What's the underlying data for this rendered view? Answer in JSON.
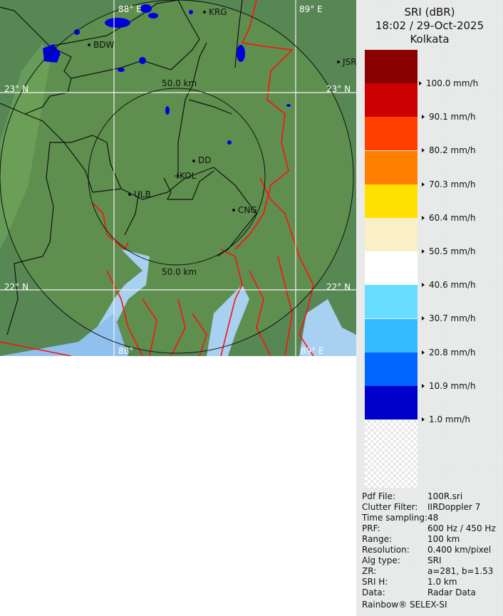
{
  "title": {
    "product": "SRI (dBR)",
    "datetime": "18:02 / 29-Oct-2025",
    "site": "Kolkata"
  },
  "map": {
    "grid_labels": {
      "lon_88": "88° E",
      "lon_89": "89° E",
      "lat_23_left": "23° N",
      "lat_23_right": "23° N",
      "lat_22_left": "22° N",
      "lat_22_right": "22° N",
      "lon_88_bottom": "88°",
      "lon_89_bottom": "89° E"
    },
    "range_rings": {
      "inner_label": "50.0 km",
      "outer_label": "50.0 km"
    },
    "cities": [
      {
        "name": "KRG"
      },
      {
        "name": "BDW"
      },
      {
        "name": "JSR"
      },
      {
        "name": "DD"
      },
      {
        "name": "KOL"
      },
      {
        "name": "ULB"
      },
      {
        "name": "CNG"
      }
    ],
    "colors": {
      "land": "#5b8c50",
      "water": "#a8d0f0",
      "borders": "#111111",
      "rivers": "#ff1010",
      "rain": "#0000dd"
    }
  },
  "legend": {
    "bands": [
      {
        "color": "#8b0000"
      },
      {
        "color": "#cc0000"
      },
      {
        "color": "#ff4000"
      },
      {
        "color": "#ff8000"
      },
      {
        "color": "#ffe000"
      },
      {
        "color": "#faf0c8"
      },
      {
        "color": "#ffffff"
      },
      {
        "color": "#66ddff"
      },
      {
        "color": "#33bbff"
      },
      {
        "color": "#0066ff"
      },
      {
        "color": "#0000cc"
      }
    ],
    "labels": [
      "100.0 mm/h",
      "90.1 mm/h",
      "80.2 mm/h",
      "70.3 mm/h",
      "60.4 mm/h",
      "50.5 mm/h",
      "40.6 mm/h",
      "30.7 mm/h",
      "20.8 mm/h",
      "10.9 mm/h",
      "1.0 mm/h"
    ]
  },
  "info": [
    {
      "k": "Pdf File:",
      "v": "100R.sri"
    },
    {
      "k": "Clutter Filter:",
      "v": "IIRDoppler 7"
    },
    {
      "k": "Time sampling:",
      "v": "48"
    },
    {
      "k": "PRF:",
      "v": "600 Hz / 450 Hz"
    },
    {
      "k": "Range:",
      "v": "100 km"
    },
    {
      "k": "Resolution:",
      "v": "0.400 km/pixel"
    },
    {
      "k": "Alg type:",
      "v": "SRI"
    },
    {
      "k": "ZR:",
      "v": "a=281, b=1.53"
    },
    {
      "k": "SRI H:",
      "v": "1.0 km"
    },
    {
      "k": "Data:",
      "v": "Radar Data"
    }
  ],
  "footer": "Rainbow® SELEX-SI"
}
